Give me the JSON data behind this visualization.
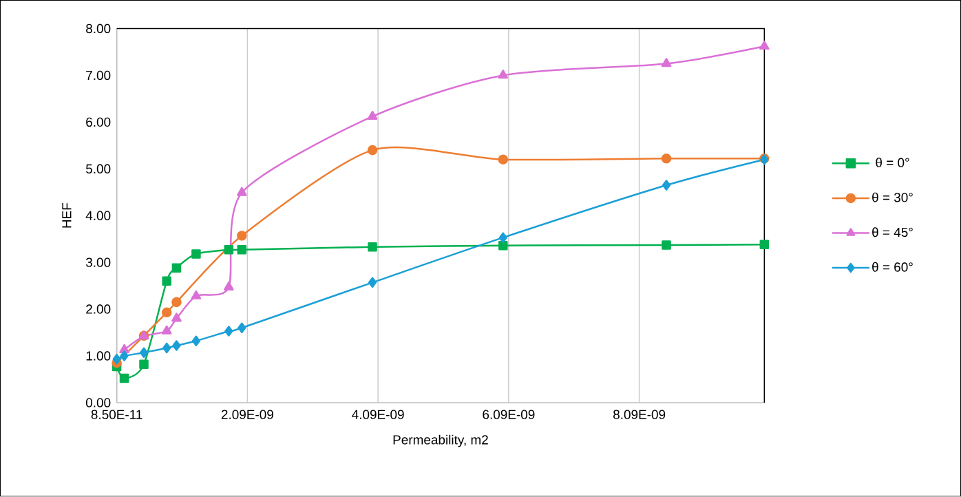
{
  "chart_data": {
    "type": "line",
    "xlabel": "Permeability, m2",
    "ylabel": "HEF",
    "x": [
      8.5e-11,
      2e-10,
      5e-10,
      8.5e-10,
      1e-09,
      1.3e-09,
      1.8e-09,
      2e-09,
      4e-09,
      6e-09,
      8.5e-09,
      1e-08
    ],
    "xlim": [
      8.5e-11,
      1e-08
    ],
    "xticks": [
      {
        "value": 8.5e-11,
        "label": "8.50E-11"
      },
      {
        "value": 2.085e-09,
        "label": "2.09E-09"
      },
      {
        "value": 4.085e-09,
        "label": "4.09E-09"
      },
      {
        "value": 6.085e-09,
        "label": "6.09E-09"
      },
      {
        "value": 8.085e-09,
        "label": "8.09E-09"
      }
    ],
    "ylim": [
      0,
      8
    ],
    "yticks": [
      {
        "value": 0,
        "label": "0.00"
      },
      {
        "value": 1,
        "label": "1.00"
      },
      {
        "value": 2,
        "label": "2.00"
      },
      {
        "value": 3,
        "label": "3.00"
      },
      {
        "value": 4,
        "label": "4.00"
      },
      {
        "value": 5,
        "label": "5.00"
      },
      {
        "value": 6,
        "label": "6.00"
      },
      {
        "value": 7,
        "label": "7.00"
      },
      {
        "value": 8,
        "label": "8.00"
      }
    ],
    "grid": "x",
    "legend": "right",
    "line_style": "solid",
    "series": [
      {
        "name": "θ = 0°",
        "color": "#00b050",
        "marker": "square",
        "values": [
          0.77,
          0.52,
          0.82,
          2.6,
          2.88,
          3.18,
          3.27,
          3.27,
          3.33,
          3.36,
          3.37,
          3.38
        ]
      },
      {
        "name": "θ = 30°",
        "color": "#ed7d31",
        "marker": "circle",
        "values": [
          0.85,
          null,
          1.43,
          1.93,
          2.15,
          null,
          null,
          3.57,
          5.4,
          5.2,
          5.22,
          5.22
        ]
      },
      {
        "name": "θ = 45°",
        "color": "#da70d6",
        "marker": "triangle",
        "values": [
          null,
          1.13,
          1.42,
          1.53,
          1.8,
          2.28,
          2.47,
          4.49,
          6.12,
          7.0,
          7.25,
          7.62
        ]
      },
      {
        "name": "θ = 60°",
        "color": "#1a9fd6",
        "marker": "diamond",
        "values": [
          0.93,
          1.0,
          1.07,
          1.17,
          1.22,
          1.32,
          1.53,
          1.6,
          2.57,
          3.53,
          4.65,
          5.2
        ]
      }
    ]
  }
}
